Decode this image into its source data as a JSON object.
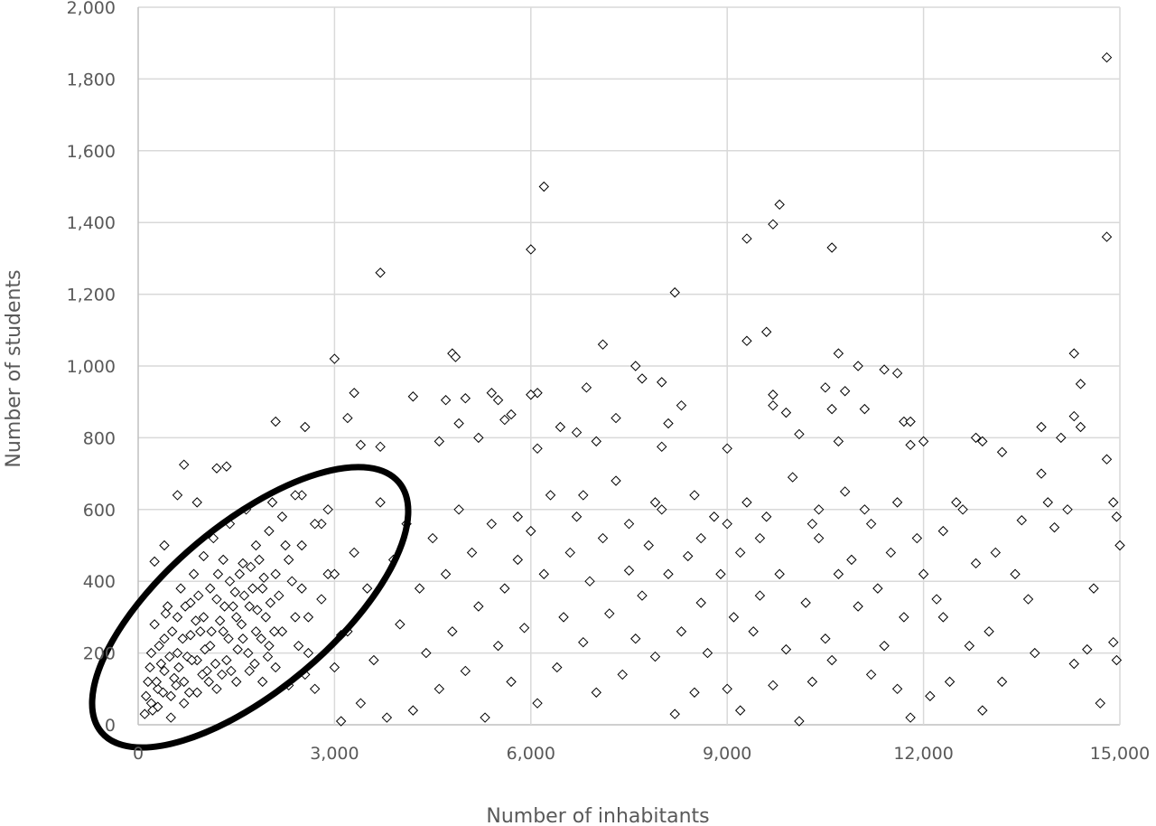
{
  "chart_data": {
    "type": "scatter",
    "title": "",
    "xlabel": "Number of inhabitants",
    "ylabel": "Number of students",
    "xlim": [
      0,
      15000
    ],
    "ylim": [
      0,
      2000
    ],
    "xticks": [
      "0",
      "3,000",
      "6,000",
      "9,000",
      "12,000",
      "15,000"
    ],
    "yticks": [
      "0",
      "200",
      "400",
      "600",
      "800",
      "1,000",
      "1,200",
      "1,400",
      "1,600",
      "1,800",
      "2,000"
    ],
    "grid": true,
    "legend": "none",
    "marker": "hollow diamond",
    "marker_color": "#000000",
    "grid_color": "#d9d9d9",
    "annotation": "black ellipse around dense cluster at low inhabitants / low students",
    "points": [
      [
        6200,
        1500
      ],
      [
        14800,
        1860
      ],
      [
        14800,
        1360
      ],
      [
        9800,
        1450
      ],
      [
        9700,
        1395
      ],
      [
        9300,
        1355
      ],
      [
        10600,
        1330
      ],
      [
        6000,
        1325
      ],
      [
        3700,
        1260
      ],
      [
        8200,
        1205
      ],
      [
        9300,
        1070
      ],
      [
        9600,
        1095
      ],
      [
        7100,
        1060
      ],
      [
        10700,
        1035
      ],
      [
        14300,
        1035
      ],
      [
        4800,
        1035
      ],
      [
        4850,
        1025
      ],
      [
        3000,
        1020
      ],
      [
        7600,
        1000
      ],
      [
        11000,
        1000
      ],
      [
        11400,
        990
      ],
      [
        11600,
        980
      ],
      [
        7700,
        965
      ],
      [
        14400,
        950
      ],
      [
        8000,
        955
      ],
      [
        6850,
        940
      ],
      [
        10500,
        940
      ],
      [
        10800,
        930
      ],
      [
        6100,
        925
      ],
      [
        3300,
        925
      ],
      [
        5400,
        925
      ],
      [
        4200,
        915
      ],
      [
        9700,
        920
      ],
      [
        5000,
        910
      ],
      [
        4700,
        905
      ],
      [
        5500,
        905
      ],
      [
        6000,
        920
      ],
      [
        2100,
        845
      ],
      [
        2550,
        830
      ],
      [
        7300,
        855
      ],
      [
        8300,
        890
      ],
      [
        9700,
        890
      ],
      [
        9900,
        870
      ],
      [
        10600,
        880
      ],
      [
        11100,
        880
      ],
      [
        11700,
        845
      ],
      [
        11800,
        845
      ],
      [
        12000,
        790
      ],
      [
        13800,
        830
      ],
      [
        14300,
        860
      ],
      [
        14400,
        830
      ],
      [
        5700,
        865
      ],
      [
        5600,
        850
      ],
      [
        4900,
        840
      ],
      [
        3200,
        855
      ],
      [
        6450,
        830
      ],
      [
        6700,
        815
      ],
      [
        7500,
        560
      ],
      [
        8100,
        840
      ],
      [
        10100,
        810
      ],
      [
        700,
        725
      ],
      [
        1200,
        715
      ],
      [
        1350,
        720
      ],
      [
        400,
        500
      ],
      [
        600,
        640
      ],
      [
        900,
        620
      ],
      [
        250,
        455
      ],
      [
        3400,
        780
      ],
      [
        3700,
        775
      ],
      [
        4600,
        790
      ],
      [
        5200,
        800
      ],
      [
        6100,
        770
      ],
      [
        7000,
        790
      ],
      [
        8000,
        775
      ],
      [
        9000,
        770
      ],
      [
        10700,
        790
      ],
      [
        11800,
        780
      ],
      [
        12800,
        800
      ],
      [
        12900,
        790
      ],
      [
        13200,
        760
      ],
      [
        13500,
        570
      ],
      [
        14100,
        800
      ],
      [
        14800,
        740
      ],
      [
        14900,
        620
      ],
      [
        15000,
        500
      ],
      [
        14950,
        580
      ],
      [
        14900,
        230
      ],
      [
        14950,
        180
      ],
      [
        14700,
        60
      ],
      [
        14500,
        210
      ],
      [
        14300,
        170
      ],
      [
        14200,
        600
      ],
      [
        14000,
        550
      ],
      [
        13800,
        700
      ],
      [
        13600,
        350
      ],
      [
        13400,
        420
      ],
      [
        13200,
        120
      ],
      [
        13000,
        260
      ],
      [
        12800,
        450
      ],
      [
        12700,
        220
      ],
      [
        12500,
        620
      ],
      [
        12400,
        120
      ],
      [
        12300,
        540
      ],
      [
        12200,
        350
      ],
      [
        12100,
        80
      ],
      [
        11900,
        520
      ],
      [
        11800,
        20
      ],
      [
        11700,
        300
      ],
      [
        11600,
        100
      ],
      [
        11500,
        480
      ],
      [
        11400,
        220
      ],
      [
        11300,
        380
      ],
      [
        11200,
        560
      ],
      [
        11100,
        600
      ],
      [
        11000,
        330
      ],
      [
        10900,
        460
      ],
      [
        10800,
        650
      ],
      [
        10700,
        420
      ],
      [
        10600,
        180
      ],
      [
        10500,
        240
      ],
      [
        10400,
        520
      ],
      [
        10300,
        560
      ],
      [
        10200,
        340
      ],
      [
        10100,
        10
      ],
      [
        10000,
        690
      ],
      [
        9900,
        210
      ],
      [
        9800,
        420
      ],
      [
        9700,
        110
      ],
      [
        9600,
        580
      ],
      [
        9500,
        360
      ],
      [
        9400,
        260
      ],
      [
        9300,
        620
      ],
      [
        9200,
        480
      ],
      [
        9100,
        300
      ],
      [
        9000,
        100
      ],
      [
        8900,
        420
      ],
      [
        8800,
        580
      ],
      [
        8700,
        200
      ],
      [
        8600,
        340
      ],
      [
        8500,
        640
      ],
      [
        8400,
        470
      ],
      [
        8300,
        260
      ],
      [
        8200,
        30
      ],
      [
        8100,
        420
      ],
      [
        8000,
        600
      ],
      [
        7900,
        190
      ],
      [
        7800,
        500
      ],
      [
        7700,
        360
      ],
      [
        7600,
        240
      ],
      [
        7500,
        430
      ],
      [
        7400,
        140
      ],
      [
        7300,
        680
      ],
      [
        7200,
        310
      ],
      [
        7100,
        520
      ],
      [
        7000,
        90
      ],
      [
        6900,
        400
      ],
      [
        6800,
        230
      ],
      [
        6700,
        580
      ],
      [
        6600,
        480
      ],
      [
        6500,
        300
      ],
      [
        6400,
        160
      ],
      [
        6300,
        640
      ],
      [
        6200,
        420
      ],
      [
        6100,
        60
      ],
      [
        6000,
        540
      ],
      [
        5900,
        270
      ],
      [
        5800,
        460
      ],
      [
        5700,
        120
      ],
      [
        5600,
        380
      ],
      [
        5500,
        220
      ],
      [
        5400,
        560
      ],
      [
        5300,
        20
      ],
      [
        5200,
        330
      ],
      [
        5100,
        480
      ],
      [
        5000,
        150
      ],
      [
        4900,
        600
      ],
      [
        4800,
        260
      ],
      [
        4700,
        420
      ],
      [
        4600,
        100
      ],
      [
        4500,
        520
      ],
      [
        4400,
        200
      ],
      [
        4300,
        380
      ],
      [
        4200,
        40
      ],
      [
        4100,
        560
      ],
      [
        4000,
        280
      ],
      [
        3900,
        460
      ],
      [
        3800,
        20
      ],
      [
        3700,
        620
      ],
      [
        3600,
        180
      ],
      [
        3500,
        380
      ],
      [
        3400,
        60
      ],
      [
        3300,
        480
      ],
      [
        3200,
        260
      ],
      [
        3100,
        10
      ],
      [
        3000,
        160
      ],
      [
        2900,
        420
      ],
      [
        2800,
        560
      ],
      [
        2700,
        100
      ],
      [
        2600,
        300
      ],
      [
        2500,
        640
      ],
      [
        9000,
        560
      ],
      [
        9500,
        520
      ],
      [
        10400,
        600
      ],
      [
        11600,
        620
      ],
      [
        12600,
        600
      ],
      [
        13900,
        620
      ],
      [
        8600,
        520
      ],
      [
        7900,
        620
      ],
      [
        6800,
        640
      ],
      [
        5800,
        580
      ],
      [
        12000,
        420
      ],
      [
        12300,
        300
      ],
      [
        13100,
        480
      ],
      [
        13700,
        200
      ],
      [
        14600,
        380
      ],
      [
        12900,
        40
      ],
      [
        11200,
        140
      ],
      [
        10300,
        120
      ],
      [
        9200,
        40
      ],
      [
        8500,
        90
      ],
      [
        200,
        60
      ],
      [
        300,
        100
      ],
      [
        400,
        150
      ],
      [
        500,
        80
      ],
      [
        600,
        200
      ],
      [
        700,
        120
      ],
      [
        800,
        250
      ],
      [
        900,
        180
      ],
      [
        1000,
        300
      ],
      [
        1100,
        220
      ],
      [
        1200,
        350
      ],
      [
        1300,
        260
      ],
      [
        1400,
        400
      ],
      [
        1500,
        300
      ],
      [
        1600,
        450
      ],
      [
        1700,
        330
      ],
      [
        1800,
        500
      ],
      [
        1900,
        380
      ],
      [
        2000,
        540
      ],
      [
        2100,
        420
      ],
      [
        2200,
        580
      ],
      [
        2300,
        460
      ],
      [
        2400,
        300
      ],
      [
        2500,
        500
      ],
      [
        2600,
        200
      ],
      [
        2700,
        560
      ],
      [
        2800,
        350
      ],
      [
        2900,
        600
      ],
      [
        3000,
        420
      ],
      [
        3100,
        250
      ],
      [
        100,
        30
      ],
      [
        150,
        120
      ],
      [
        200,
        200
      ],
      [
        250,
        280
      ],
      [
        300,
        50
      ],
      [
        350,
        170
      ],
      [
        400,
        240
      ],
      [
        450,
        330
      ],
      [
        500,
        20
      ],
      [
        550,
        130
      ],
      [
        600,
        300
      ],
      [
        650,
        380
      ],
      [
        700,
        60
      ],
      [
        750,
        190
      ],
      [
        800,
        340
      ],
      [
        850,
        420
      ],
      [
        900,
        90
      ],
      [
        950,
        260
      ],
      [
        1000,
        470
      ],
      [
        1050,
        150
      ],
      [
        1100,
        380
      ],
      [
        1150,
        520
      ],
      [
        1200,
        100
      ],
      [
        1250,
        290
      ],
      [
        1300,
        460
      ],
      [
        1350,
        180
      ],
      [
        1400,
        560
      ],
      [
        1450,
        330
      ],
      [
        1500,
        120
      ],
      [
        1550,
        420
      ],
      [
        1600,
        240
      ],
      [
        1650,
        600
      ],
      [
        1700,
        150
      ],
      [
        1750,
        380
      ],
      [
        1800,
        260
      ],
      [
        1850,
        460
      ],
      [
        1900,
        120
      ],
      [
        1950,
        300
      ],
      [
        2000,
        220
      ],
      [
        2050,
        620
      ],
      [
        2100,
        160
      ],
      [
        2150,
        360
      ],
      [
        2200,
        260
      ],
      [
        2250,
        500
      ],
      [
        2300,
        110
      ],
      [
        2350,
        400
      ],
      [
        2400,
        640
      ],
      [
        2450,
        220
      ],
      [
        2500,
        380
      ],
      [
        2550,
        140
      ],
      [
        120,
        80
      ],
      [
        180,
        160
      ],
      [
        220,
        40
      ],
      [
        280,
        120
      ],
      [
        320,
        220
      ],
      [
        380,
        90
      ],
      [
        420,
        310
      ],
      [
        480,
        190
      ],
      [
        520,
        260
      ],
      [
        580,
        110
      ],
      [
        620,
        160
      ],
      [
        680,
        240
      ],
      [
        720,
        330
      ],
      [
        780,
        90
      ],
      [
        820,
        180
      ],
      [
        880,
        290
      ],
      [
        920,
        360
      ],
      [
        980,
        140
      ],
      [
        1020,
        210
      ],
      [
        1080,
        120
      ],
      [
        1120,
        260
      ],
      [
        1180,
        170
      ],
      [
        1220,
        420
      ],
      [
        1280,
        140
      ],
      [
        1320,
        330
      ],
      [
        1380,
        240
      ],
      [
        1420,
        150
      ],
      [
        1480,
        370
      ],
      [
        1520,
        210
      ],
      [
        1580,
        280
      ],
      [
        1620,
        360
      ],
      [
        1680,
        200
      ],
      [
        1720,
        440
      ],
      [
        1780,
        170
      ],
      [
        1820,
        320
      ],
      [
        1880,
        240
      ],
      [
        1920,
        410
      ],
      [
        1980,
        190
      ],
      [
        2020,
        340
      ],
      [
        2080,
        260
      ]
    ]
  }
}
